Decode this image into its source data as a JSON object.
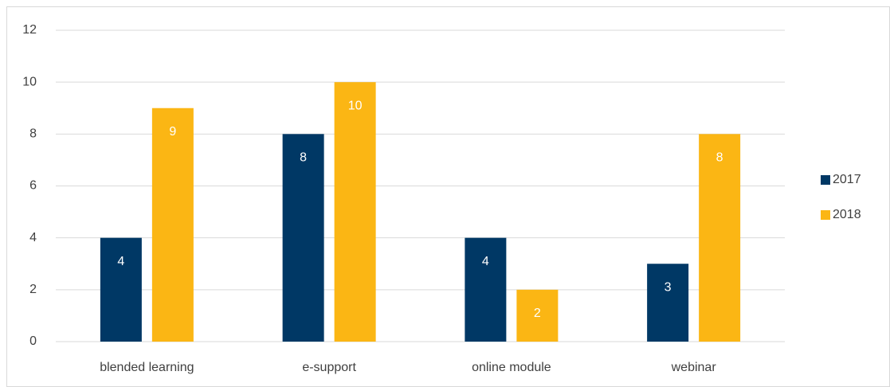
{
  "chart_data": {
    "type": "bar",
    "categories": [
      "blended learning",
      "e-support",
      "online module",
      "webinar"
    ],
    "series": [
      {
        "name": "2017",
        "color": "#003865",
        "values": [
          4,
          8,
          4,
          3
        ]
      },
      {
        "name": "2018",
        "color": "#fbb614",
        "values": [
          9,
          10,
          2,
          8
        ]
      }
    ],
    "ylim": [
      0,
      12
    ],
    "yticks": [
      0,
      2,
      4,
      6,
      8,
      10,
      12
    ],
    "grid": true,
    "legend": "right"
  }
}
